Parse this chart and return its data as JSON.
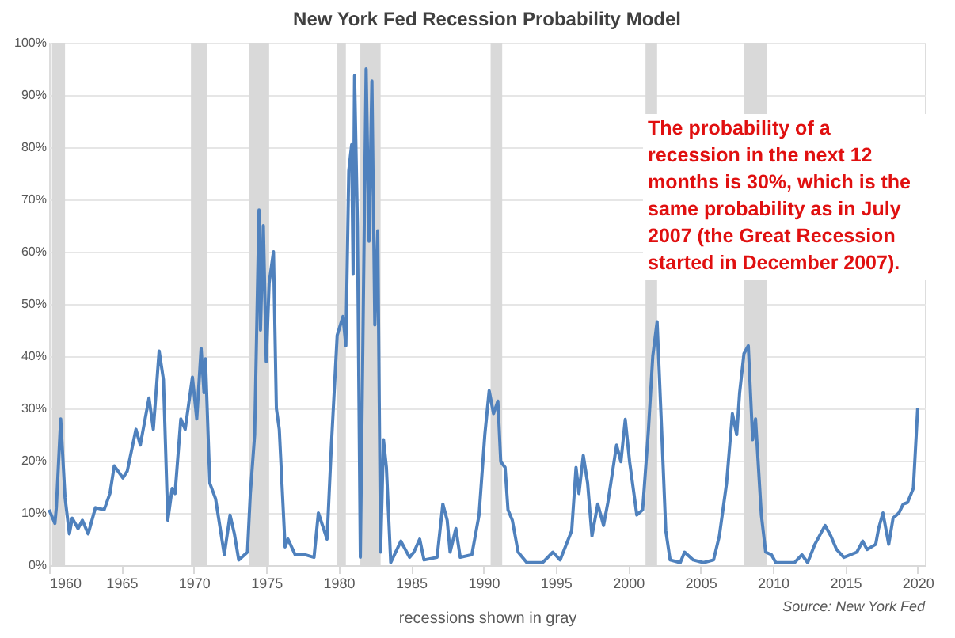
{
  "chart_data": {
    "type": "line",
    "title": "New York Fed Recession Probability Model",
    "xlabel": "recessions shown in gray",
    "annotations": [
      "The probability of a\nrecession in the next 12\nmonths is 30%, which is the\nsame probability as in July\n2007 (the Great Recession\nstarted in December 2007).",
      "Source: New York Fed"
    ],
    "xlim": [
      1960,
      2020.5
    ],
    "xticks": [
      1960,
      1965,
      1970,
      1975,
      1980,
      1985,
      1990,
      1995,
      2000,
      2005,
      2010,
      2015,
      2020
    ],
    "ylim": [
      0,
      100
    ],
    "yticks": [
      {
        "value": 0,
        "label": "0%"
      },
      {
        "value": 10,
        "label": "10%"
      },
      {
        "value": 20,
        "label": "20%"
      },
      {
        "value": 30,
        "label": "30%"
      },
      {
        "value": 40,
        "label": "40%"
      },
      {
        "value": 50,
        "label": "50%"
      },
      {
        "value": 60,
        "label": "60%"
      },
      {
        "value": 70,
        "label": "70%"
      },
      {
        "value": 80,
        "label": "80%"
      },
      {
        "value": 90,
        "label": "90%"
      },
      {
        "value": 100,
        "label": "100%"
      }
    ],
    "grid": "y",
    "marker": "none",
    "line_style": "solid",
    "bands": [
      {
        "axis": "x",
        "from": 1960.2,
        "to": 1961.1,
        "color": "#d9d9d9"
      },
      {
        "axis": "x",
        "from": 1969.8,
        "to": 1970.9,
        "color": "#d9d9d9"
      },
      {
        "axis": "x",
        "from": 1973.8,
        "to": 1975.2,
        "color": "#d9d9d9"
      },
      {
        "axis": "x",
        "from": 1979.9,
        "to": 1980.5,
        "color": "#d9d9d9"
      },
      {
        "axis": "x",
        "from": 1981.5,
        "to": 1982.9,
        "color": "#d9d9d9"
      },
      {
        "axis": "x",
        "from": 1990.5,
        "to": 1991.3,
        "color": "#d9d9d9"
      },
      {
        "axis": "x",
        "from": 2001.2,
        "to": 2002.0,
        "color": "#d9d9d9"
      },
      {
        "axis": "x",
        "from": 2008.0,
        "to": 2009.6,
        "color": "#d9d9d9"
      }
    ],
    "series": [
      {
        "color": "#4f81bd",
        "x": [
          1960.0,
          1960.4,
          1960.5,
          1960.8,
          1961.1,
          1961.4,
          1961.6,
          1962.0,
          1962.3,
          1962.7,
          1963.2,
          1963.8,
          1964.2,
          1964.5,
          1965.1,
          1965.4,
          1966.0,
          1966.3,
          1966.9,
          1967.2,
          1967.6,
          1967.9,
          1968.2,
          1968.5,
          1968.7,
          1969.1,
          1969.4,
          1969.9,
          1970.2,
          1970.5,
          1970.7,
          1970.8,
          1971.1,
          1971.5,
          1971.9,
          1972.1,
          1972.5,
          1972.8,
          1973.1,
          1973.7,
          1973.9,
          1974.2,
          1974.5,
          1974.6,
          1974.8,
          1975.0,
          1975.2,
          1975.5,
          1975.7,
          1975.9,
          1976.3,
          1976.5,
          1977.0,
          1977.7,
          1978.3,
          1978.6,
          1979.2,
          1979.5,
          1979.9,
          1980.3,
          1980.5,
          1980.7,
          1980.9,
          1981.0,
          1981.1,
          1981.3,
          1981.5,
          1981.8,
          1981.9,
          1982.1,
          1982.3,
          1982.5,
          1982.7,
          1982.9,
          1983.1,
          1983.3,
          1983.6,
          1984.3,
          1984.9,
          1985.2,
          1985.6,
          1985.9,
          1986.8,
          1987.2,
          1987.5,
          1987.7,
          1988.1,
          1988.4,
          1989.2,
          1989.7,
          1990.1,
          1990.4,
          1990.7,
          1991.0,
          1991.2,
          1991.5,
          1991.7,
          1992.0,
          1992.4,
          1993.0,
          1994.1,
          1994.8,
          1995.3,
          1996.1,
          1996.4,
          1996.6,
          1996.9,
          1997.2,
          1997.5,
          1997.9,
          1998.3,
          1998.6,
          1999.2,
          1999.5,
          1999.8,
          2000.1,
          2000.6,
          2001.0,
          2001.4,
          2001.7,
          2002.0,
          2002.3,
          2002.6,
          2002.9,
          2003.6,
          2003.9,
          2004.5,
          2005.2,
          2005.9,
          2006.3,
          2006.8,
          2007.2,
          2007.5,
          2007.7,
          2008.0,
          2008.3,
          2008.6,
          2008.8,
          2009.2,
          2009.5,
          2009.9,
          2010.2,
          2011.5,
          2012.0,
          2012.4,
          2012.9,
          2013.6,
          2014.0,
          2014.4,
          2014.9,
          2015.8,
          2016.2,
          2016.5,
          2017.1,
          2017.3,
          2017.6,
          2018.0,
          2018.3,
          2018.7,
          2019.0,
          2019.3,
          2019.7,
          2020.0
        ],
        "values": [
          10.6,
          8,
          11,
          28,
          13,
          6,
          9,
          7,
          8.6,
          6,
          11,
          10.6,
          13.7,
          19,
          16.7,
          18,
          26,
          23,
          32,
          26,
          41,
          35.5,
          8.6,
          14.7,
          13.7,
          28,
          26,
          36,
          28,
          41.5,
          33,
          39.5,
          15.7,
          12.7,
          5.6,
          2,
          9.6,
          6,
          1,
          2.5,
          13.7,
          25,
          68,
          45,
          65,
          39,
          54,
          60,
          30,
          26,
          3.5,
          5,
          2,
          2,
          1.5,
          10,
          5,
          23,
          44,
          47.6,
          42,
          75.5,
          80.5,
          55.7,
          93.7,
          65,
          1.5,
          72,
          95,
          62,
          92.7,
          46,
          64,
          2.5,
          24,
          18.7,
          0.5,
          4.6,
          1.5,
          2.5,
          5,
          1,
          1.5,
          11.7,
          8.6,
          2.5,
          7,
          1.5,
          2,
          9.6,
          25,
          33.4,
          29,
          31.4,
          19.8,
          18.7,
          10.6,
          8.6,
          2.5,
          0.5,
          0.5,
          2.5,
          1,
          6.6,
          18.7,
          13.7,
          21,
          15.7,
          5.6,
          11.7,
          7.6,
          12,
          23,
          19.8,
          27.9,
          19.8,
          9.6,
          10.6,
          25.8,
          40,
          46.6,
          26.8,
          6.6,
          1,
          0.5,
          2.5,
          1,
          0.5,
          1,
          5.6,
          15.7,
          29,
          25,
          33,
          40.5,
          42,
          24,
          28,
          9.6,
          2.5,
          2,
          0.5,
          0.5,
          2,
          0.5,
          4,
          7.6,
          5.6,
          3,
          1.5,
          2.5,
          4.6,
          3,
          4,
          7,
          10,
          4,
          9,
          10,
          11.7,
          12,
          14.7,
          30
        ]
      }
    ]
  }
}
